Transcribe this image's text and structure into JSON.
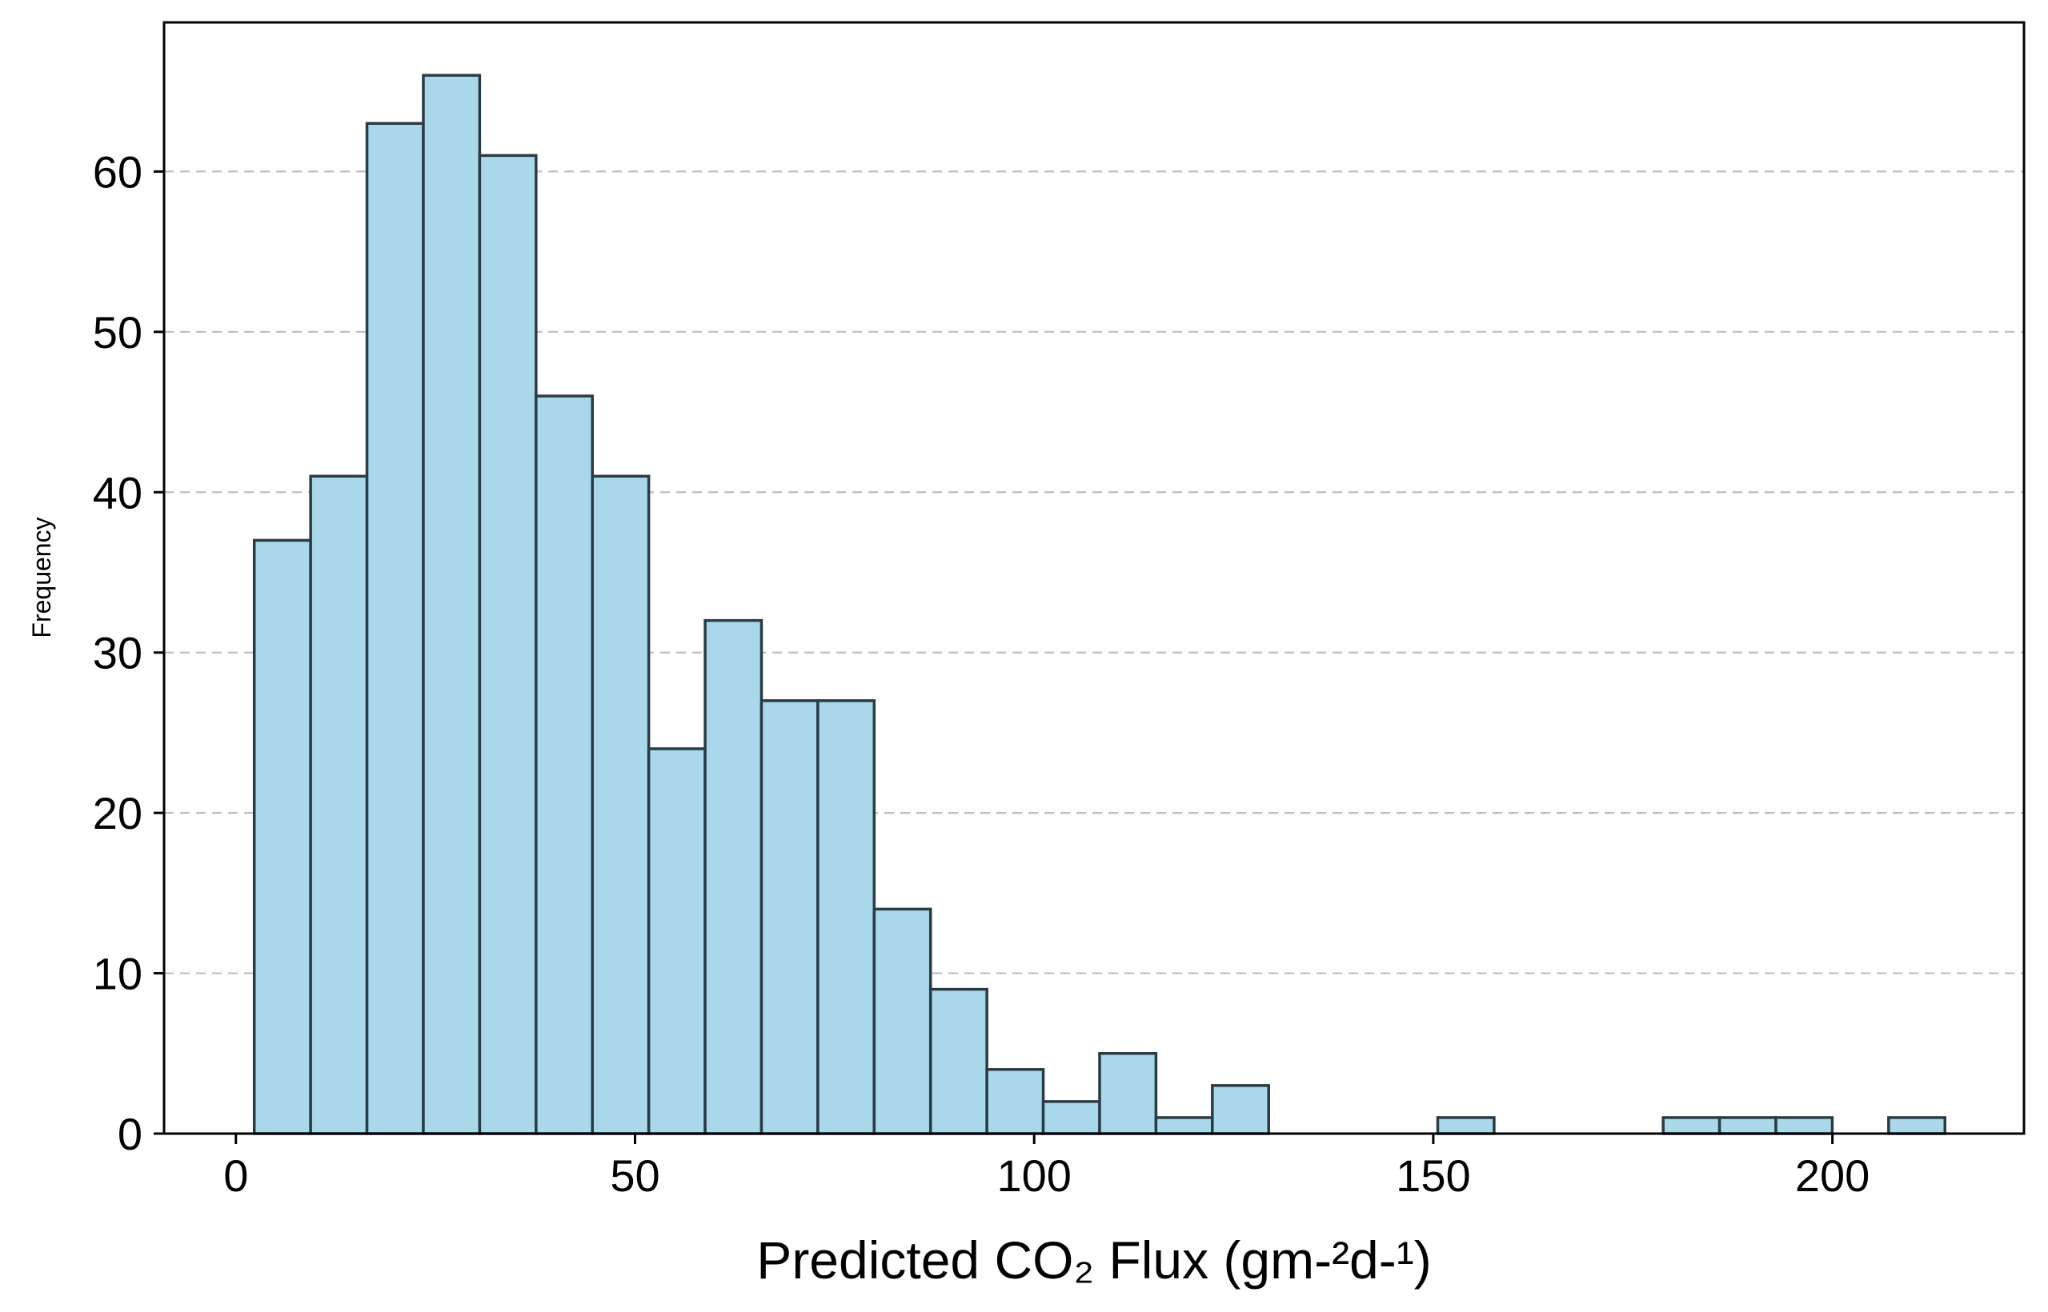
{
  "chart_data": {
    "type": "bar",
    "xlabel": "Predicted CO₂ Flux (gm-²d-¹)",
    "ylabel": "Frequency",
    "xlim": [
      -9,
      224
    ],
    "ylim": [
      0,
      69.3
    ],
    "xticks": [
      0,
      50,
      100,
      150,
      200
    ],
    "xtick_labels": [
      "0",
      "50",
      "100",
      "150",
      "200"
    ],
    "yticks": [
      0,
      10,
      20,
      30,
      40,
      50,
      60
    ],
    "ytick_labels": [
      "0",
      "10",
      "20",
      "30",
      "40",
      "50",
      "60"
    ],
    "grid": "y-dashed",
    "bar_color": "#a8d8ea",
    "edge_color": "#2b3b44",
    "bin_width": 7.06,
    "bin_starts": [
      2.3,
      9.36,
      16.42,
      23.48,
      30.54,
      37.6,
      44.66,
      51.72,
      58.78,
      65.84,
      72.9,
      79.96,
      87.02,
      94.08,
      101.14,
      108.2,
      115.26,
      122.32,
      129.38,
      136.44,
      143.5,
      150.56,
      157.62,
      164.68,
      171.74,
      178.8,
      185.86,
      192.92,
      199.98,
      207.04
    ],
    "values": [
      37,
      41,
      63,
      66,
      61,
      46,
      41,
      24,
      32,
      27,
      27,
      14,
      9,
      4,
      2,
      5,
      1,
      3,
      0,
      0,
      0,
      1,
      0,
      0,
      0,
      1,
      1,
      1,
      0,
      1
    ]
  }
}
